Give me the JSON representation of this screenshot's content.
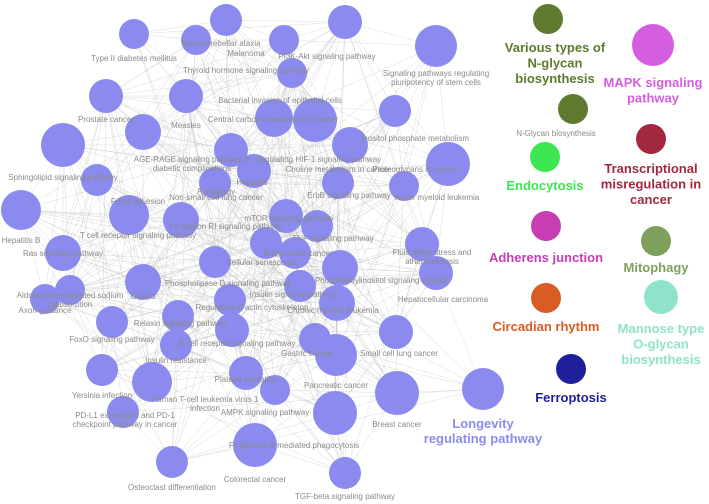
{
  "network": {
    "node_color": "#8b8bef",
    "edge_color": "#bdbdbd",
    "label_color": "#8a8a8a",
    "nodes": [
      {
        "label": "Spinocerebellar ataxia"
      },
      {
        "label": "Melanoma"
      },
      {
        "label": "PI3K-Akt signaling pathway"
      },
      {
        "label": "Type II diabetes mellitus"
      },
      {
        "label": "Thyroid hormone signaling pathway"
      },
      {
        "label": "Signaling pathways regulating pluripotency of stem cells"
      },
      {
        "label": "Prostate cancer"
      },
      {
        "label": "Bacterial invasion of epithelial cells"
      },
      {
        "label": "Measles"
      },
      {
        "label": "Central carbon metabolism in cancer"
      },
      {
        "label": "Inositol phosphate metabolism"
      },
      {
        "label": "AGE-RAGE signaling pathway in diabetic complications"
      },
      {
        "label": "Regulating HIF-1 signaling pathway"
      },
      {
        "label": "Choline metabolism in cancer"
      },
      {
        "label": "Proteoglycans in cancer"
      },
      {
        "label": "Sphingolipid signaling pathway"
      },
      {
        "label": "Autophagy"
      },
      {
        "label": "Hepatitis"
      },
      {
        "label": "Focal adhesion"
      },
      {
        "label": "Non-small cell lung cancer"
      },
      {
        "label": "ErbB signaling pathway"
      },
      {
        "label": "Acute myeloid leukemia"
      },
      {
        "label": "mTOR signaling pathway"
      },
      {
        "label": "Hepatitis B"
      },
      {
        "label": "T cell receptor signaling pathway"
      },
      {
        "label": "Fc epsilon RI signaling pathway"
      },
      {
        "label": "TNF signaling pathway"
      },
      {
        "label": "Ras signaling pathway"
      },
      {
        "label": "Fluid shear stress and atherosclerosis"
      },
      {
        "label": "Endometrial cancer"
      },
      {
        "label": "Cellular senescence"
      },
      {
        "label": "Phospholipase D signaling pathway"
      },
      {
        "label": "Phosphatidylinositol signaling system"
      },
      {
        "label": "Aldosterone-regulated sodium reabsorption"
      },
      {
        "label": "Insulin signaling pathway"
      },
      {
        "label": "Glioma"
      },
      {
        "label": "Hepatocellular carcinoma"
      },
      {
        "label": "Axon guidance"
      },
      {
        "label": "Chronic myeloid leukemia"
      },
      {
        "label": "Regulation of actin cytoskeleton"
      },
      {
        "label": "Relaxin signaling pathway"
      },
      {
        "label": "FoxO signaling pathway"
      },
      {
        "label": "B cell receptor signaling pathway"
      },
      {
        "label": "Small cell lung cancer"
      },
      {
        "label": "Insulin resistance"
      },
      {
        "label": "Gastric cancer"
      },
      {
        "label": "Yersinia infection"
      },
      {
        "label": "Platelet activation"
      },
      {
        "label": "Human T-cell leukemia virus 1 infection"
      },
      {
        "label": "Pancreatic cancer"
      },
      {
        "label": "PD-L1 expression and PD-1 checkpoint pathway in cancer"
      },
      {
        "label": "AMPK signaling pathway"
      },
      {
        "label": "Breast cancer"
      },
      {
        "label": "Longevity regulating pathway"
      },
      {
        "label": "Fc gamma R-mediated phagocytosis"
      },
      {
        "label": "Colorectal cancer"
      },
      {
        "label": "Osteoclast differentiation"
      },
      {
        "label": "TGF-beta signaling pathway"
      }
    ]
  },
  "clusters": [
    {
      "label": "Various types of N-glycan biosynthesis",
      "color": "#5f7a2e"
    },
    {
      "label": "N-Glycan biosynthesis",
      "color": "#5f7a2e"
    },
    {
      "label": "MAPK signaling pathway",
      "color": "#d55ee0"
    },
    {
      "label": "Transcriptional misregulation in cancer",
      "color": "#a3283f"
    },
    {
      "label": "Endocytosis",
      "color": "#3de553"
    },
    {
      "label": "Adherens junction",
      "color": "#c83db3"
    },
    {
      "label": "Mitophagy",
      "color": "#7fa05c"
    },
    {
      "label": "Circadian rhythm",
      "color": "#d85c24"
    },
    {
      "label": "Mannose type O-glycan biosynthesis",
      "color": "#8fe3cb"
    },
    {
      "label": "Ferroptosis",
      "color": "#1f1f99"
    }
  ]
}
